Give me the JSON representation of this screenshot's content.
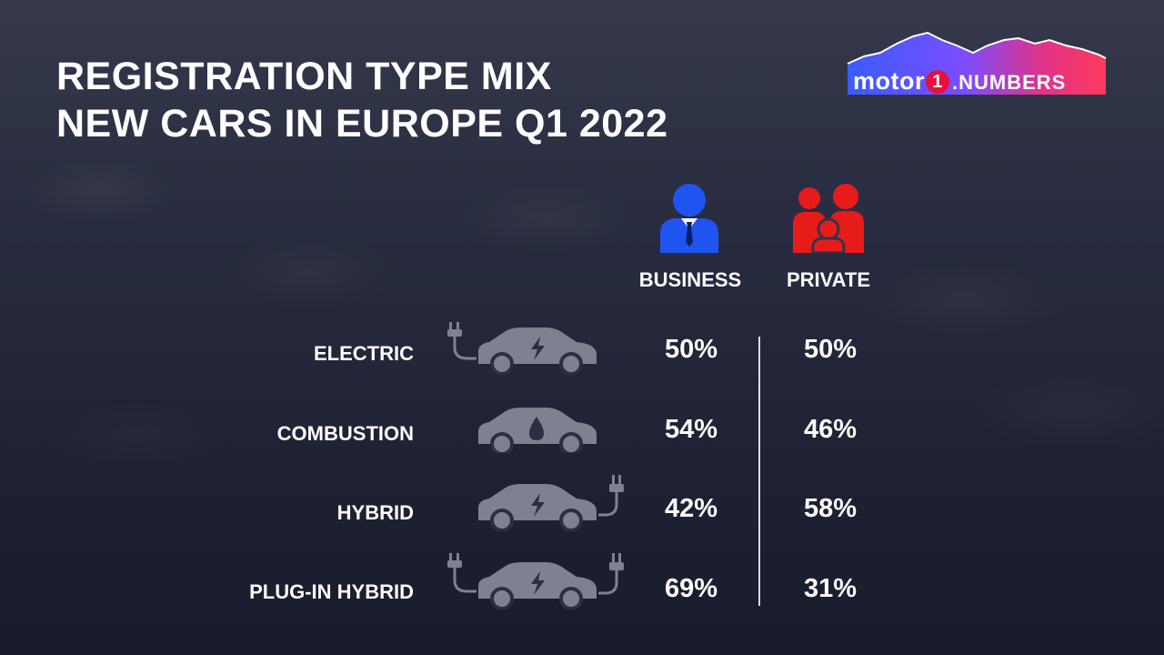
{
  "header": {
    "title_line1": "REGISTRATION TYPE MIX",
    "title_line2": "NEW CARS IN EUROPE Q1 2022"
  },
  "logo": {
    "brand": "motor",
    "one": "1",
    "suffix": ".NUMBERS"
  },
  "colors": {
    "business": "#1f54f0",
    "private": "#e81b1b",
    "car_icon": "#7e8190"
  },
  "chart_data": {
    "type": "table",
    "title": "REGISTRATION TYPE MIX NEW CARS IN EUROPE Q1 2022",
    "columns": [
      "BUSINESS",
      "PRIVATE"
    ],
    "rows": [
      {
        "label": "ELECTRIC",
        "icon": "electric-car-plug-icon",
        "business": "50%",
        "private": "50%"
      },
      {
        "label": "COMBUSTION",
        "icon": "fuel-car-icon",
        "business": "54%",
        "private": "46%"
      },
      {
        "label": "HYBRID",
        "icon": "hybrid-car-icon",
        "business": "42%",
        "private": "58%"
      },
      {
        "label": "PLUG-IN HYBRID",
        "icon": "plug-in-hybrid-car-icon",
        "business": "69%",
        "private": "31%"
      }
    ]
  }
}
